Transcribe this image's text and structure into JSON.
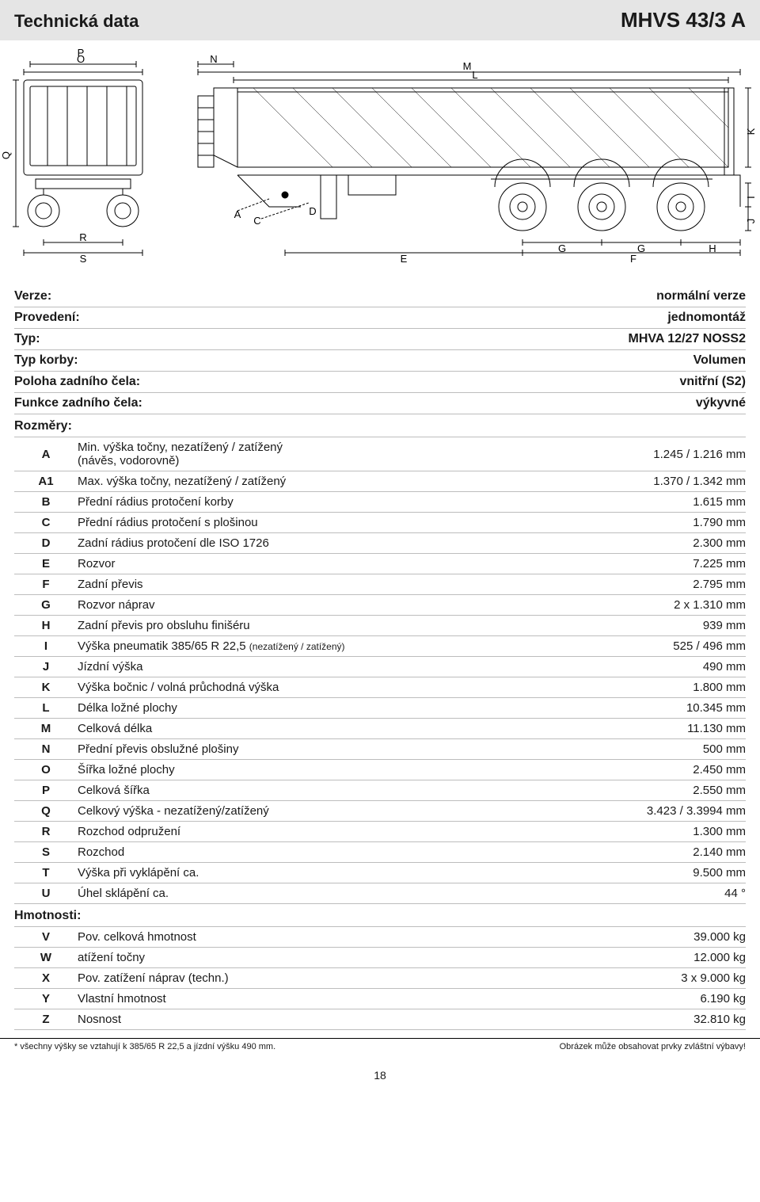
{
  "header": {
    "left": "Technická data",
    "right": "MHVS 43/3 A"
  },
  "diagram": {
    "labels": [
      "P",
      "O",
      "Q",
      "R",
      "S",
      "N",
      "A",
      "C",
      "D",
      "E",
      "M",
      "L",
      "G",
      "G",
      "F",
      "H",
      "K",
      "I",
      "J"
    ]
  },
  "meta_rows": [
    {
      "label": "Verze:",
      "value": "normální verze"
    },
    {
      "label": "Provedení:",
      "value": "jednomontáž"
    },
    {
      "label": "Typ:",
      "value": "MHVA 12/27 NOSS2"
    },
    {
      "label": "Typ korby:",
      "value": "Volumen"
    },
    {
      "label": "Poloha zadního čela:",
      "value": "vnitřní (S2)"
    },
    {
      "label": "Funkce zadního čela:",
      "value": "výkyvné"
    }
  ],
  "dims_header": "Rozměry:",
  "dims": [
    {
      "code": "A",
      "desc": "Min. výška točny, nezatížený / zatížený\n(návěs, vodorovně)",
      "value": "1.245 / 1.216 mm"
    },
    {
      "code": "A1",
      "desc": "Max. výška točny, nezatížený / zatížený",
      "value": "1.370 / 1.342 mm"
    },
    {
      "code": "B",
      "desc": "Přední rádius protočení korby",
      "value": "1.615 mm"
    },
    {
      "code": "C",
      "desc": "Přední rádius protočení s plošinou",
      "value": "1.790 mm"
    },
    {
      "code": "D",
      "desc": "Zadní rádius protočení dle ISO 1726",
      "value": "2.300 mm"
    },
    {
      "code": "E",
      "desc": "Rozvor",
      "value": "7.225 mm"
    },
    {
      "code": "F",
      "desc": "Zadní převis",
      "value": "2.795 mm"
    },
    {
      "code": "G",
      "desc": "Rozvor náprav",
      "value": "2 x 1.310 mm"
    },
    {
      "code": "H",
      "desc": "Zadní převis pro obsluhu finišéru",
      "value": "939 mm"
    },
    {
      "code": "I",
      "desc": "Výška pneumatik 385/65 R 22,5 |sub|(nezatížený / zatížený)",
      "value": "525 / 496 mm"
    },
    {
      "code": "J",
      "desc": "Jízdní výška",
      "value": "490 mm"
    },
    {
      "code": "K",
      "desc": "Výška bočnic / volná průchodná výška",
      "value": "1.800 mm"
    },
    {
      "code": "L",
      "desc": "Délka ložné plochy",
      "value": "10.345 mm"
    },
    {
      "code": "M",
      "desc": "Celková délka",
      "value": "11.130 mm"
    },
    {
      "code": "N",
      "desc": "Přední převis obslužné plošiny",
      "value": "500 mm"
    },
    {
      "code": "O",
      "desc": "Šířka ložné plochy",
      "value": "2.450 mm"
    },
    {
      "code": "P",
      "desc": "Celková šířka",
      "value": "2.550 mm"
    },
    {
      "code": "Q",
      "desc": "Celkový výška - nezatížený/zatížený",
      "value": "3.423 / 3.3994 mm"
    },
    {
      "code": "R",
      "desc": "Rozchod odpružení",
      "value": "1.300 mm"
    },
    {
      "code": "S",
      "desc": "Rozchod",
      "value": "2.140 mm"
    },
    {
      "code": "T",
      "desc": "Výška při vyklápění ca.",
      "value": "9.500 mm"
    },
    {
      "code": "U",
      "desc": "Úhel sklápění ca.",
      "value": "44 °"
    }
  ],
  "weights_header": "Hmotnosti:",
  "weights": [
    {
      "code": "V",
      "desc": "Pov. celková hmotnost",
      "value": "39.000 kg"
    },
    {
      "code": "W",
      "desc": "atížení točny",
      "value": "12.000 kg"
    },
    {
      "code": "X",
      "desc": "Pov. zatížení náprav (techn.)",
      "value": "3 x 9.000 kg"
    },
    {
      "code": "Y",
      "desc": "Vlastní hmotnost",
      "value": "6.190 kg"
    },
    {
      "code": "Z",
      "desc": "Nosnost",
      "value": "32.810 kg"
    }
  ],
  "footnote": {
    "left": "* všechny výšky se vztahují k 385/65 R 22,5 a jízdní výšku 490 mm.",
    "right": "Obrázek může obsahovat prvky zvláštní výbavy!"
  },
  "page": "18"
}
